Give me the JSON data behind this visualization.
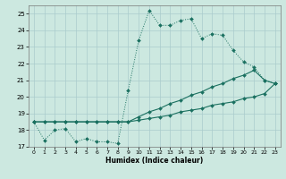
{
  "title": "",
  "xlabel": "Humidex (Indice chaleur)",
  "background_color": "#cce8e0",
  "grid_color": "#aacccc",
  "line_color": "#1a7060",
  "x_values": [
    0,
    1,
    2,
    3,
    4,
    5,
    6,
    7,
    8,
    9,
    10,
    11,
    12,
    13,
    14,
    15,
    16,
    17,
    18,
    19,
    20,
    21,
    22,
    23
  ],
  "line1_y": [
    18.5,
    17.4,
    18.0,
    18.1,
    17.3,
    17.5,
    17.3,
    17.3,
    17.2,
    20.4,
    23.4,
    25.2,
    24.3,
    24.3,
    24.6,
    24.7,
    23.5,
    23.8,
    23.7,
    22.8,
    22.1,
    21.8,
    21.0,
    20.8
  ],
  "line2_y": [
    18.5,
    18.5,
    18.5,
    18.5,
    18.5,
    18.5,
    18.5,
    18.5,
    18.5,
    18.5,
    18.8,
    19.1,
    19.3,
    19.6,
    19.8,
    20.1,
    20.3,
    20.6,
    20.8,
    21.1,
    21.3,
    21.6,
    21.0,
    20.8
  ],
  "line3_y": [
    18.5,
    18.5,
    18.5,
    18.5,
    18.5,
    18.5,
    18.5,
    18.5,
    18.5,
    18.5,
    18.6,
    18.7,
    18.8,
    18.9,
    19.1,
    19.2,
    19.3,
    19.5,
    19.6,
    19.7,
    19.9,
    20.0,
    20.2,
    20.8
  ],
  "ylim": [
    17.0,
    25.5
  ],
  "xlim": [
    -0.5,
    23.5
  ],
  "yticks": [
    17,
    18,
    19,
    20,
    21,
    22,
    23,
    24,
    25
  ],
  "xticks": [
    0,
    1,
    2,
    3,
    4,
    5,
    6,
    7,
    8,
    9,
    10,
    11,
    12,
    13,
    14,
    15,
    16,
    17,
    18,
    19,
    20,
    21,
    22,
    23
  ]
}
